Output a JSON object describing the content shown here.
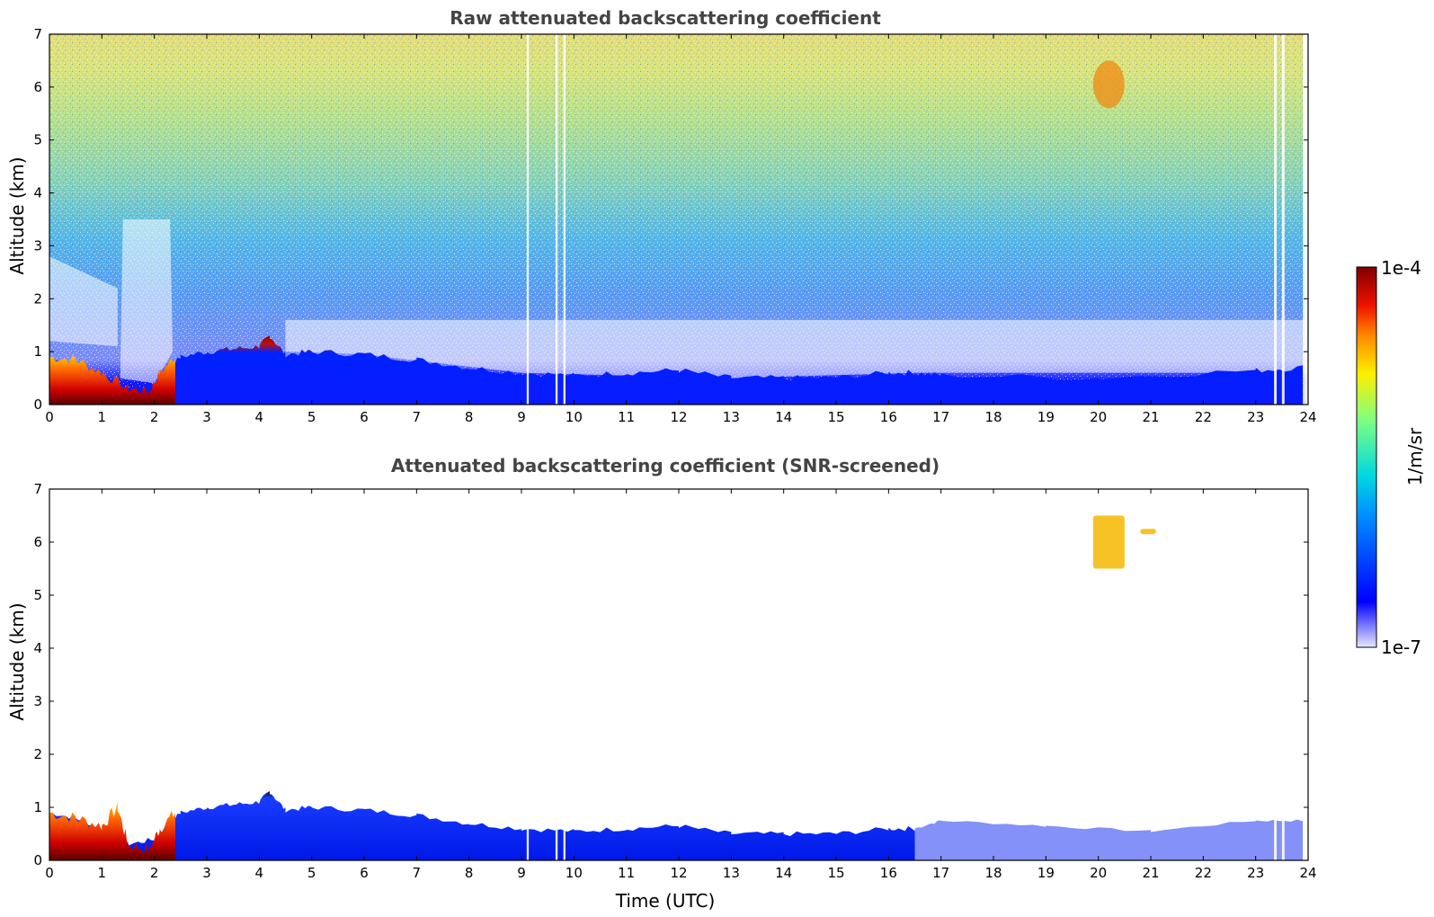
{
  "chart_data": [
    {
      "type": "heatmap",
      "title": "Raw attenuated backscattering coefficient",
      "xlabel": "",
      "ylabel": "Altitude (km)",
      "xlim": [
        0,
        24
      ],
      "ylim": [
        0,
        7
      ],
      "xticks": [
        0,
        1,
        2,
        3,
        4,
        5,
        6,
        7,
        8,
        9,
        10,
        11,
        12,
        13,
        14,
        15,
        16,
        17,
        18,
        19,
        20,
        21,
        22,
        23,
        24
      ],
      "yticks": [
        0,
        1,
        2,
        3,
        4,
        5,
        6,
        7
      ],
      "colormap": "jet",
      "color_scale": "log",
      "clim": [
        "1e-7",
        "1e-4"
      ],
      "layer_top_km": {
        "time": [
          0,
          0.5,
          1,
          1.5,
          2,
          2.5,
          3,
          3.5,
          4,
          4.2,
          4.5,
          5,
          6,
          7,
          8,
          9,
          10,
          11,
          12,
          13,
          14,
          15,
          16,
          16.5
        ],
        "altitude": [
          0.9,
          0.8,
          0.6,
          0.3,
          0.4,
          0.9,
          1.0,
          1.05,
          1.1,
          1.3,
          0.95,
          1.0,
          0.95,
          0.85,
          0.7,
          0.6,
          0.55,
          0.6,
          0.65,
          0.5,
          0.5,
          0.5,
          0.6,
          0.6
        ]
      },
      "features": [
        {
          "type": "elevated_layer",
          "time_range": [
            19.9,
            20.5
          ],
          "altitude_range": [
            5.6,
            6.5
          ]
        }
      ]
    },
    {
      "type": "heatmap",
      "title": "Attenuated backscattering coefficient (SNR-screened)",
      "xlabel": "Time (UTC)",
      "ylabel": "Altitude (km)",
      "xlim": [
        0,
        24
      ],
      "ylim": [
        0,
        7
      ],
      "xticks": [
        0,
        1,
        2,
        3,
        4,
        5,
        6,
        7,
        8,
        9,
        10,
        11,
        12,
        13,
        14,
        15,
        16,
        17,
        18,
        19,
        20,
        21,
        22,
        23,
        24
      ],
      "yticks": [
        0,
        1,
        2,
        3,
        4,
        5,
        6,
        7
      ],
      "colormap": "jet",
      "color_scale": "log",
      "clim": [
        "1e-7",
        "1e-4"
      ],
      "features": [
        {
          "type": "elevated_layer",
          "time_range": [
            19.9,
            20.5
          ],
          "altitude_range": [
            5.5,
            6.5
          ]
        },
        {
          "type": "elevated_layer",
          "time_range": [
            20.8,
            21.1
          ],
          "altitude_range": [
            6.15,
            6.25
          ]
        }
      ]
    }
  ],
  "colorbar": {
    "label": "1/m/sr",
    "max_label": "1e-4",
    "min_label": "1e-7"
  }
}
